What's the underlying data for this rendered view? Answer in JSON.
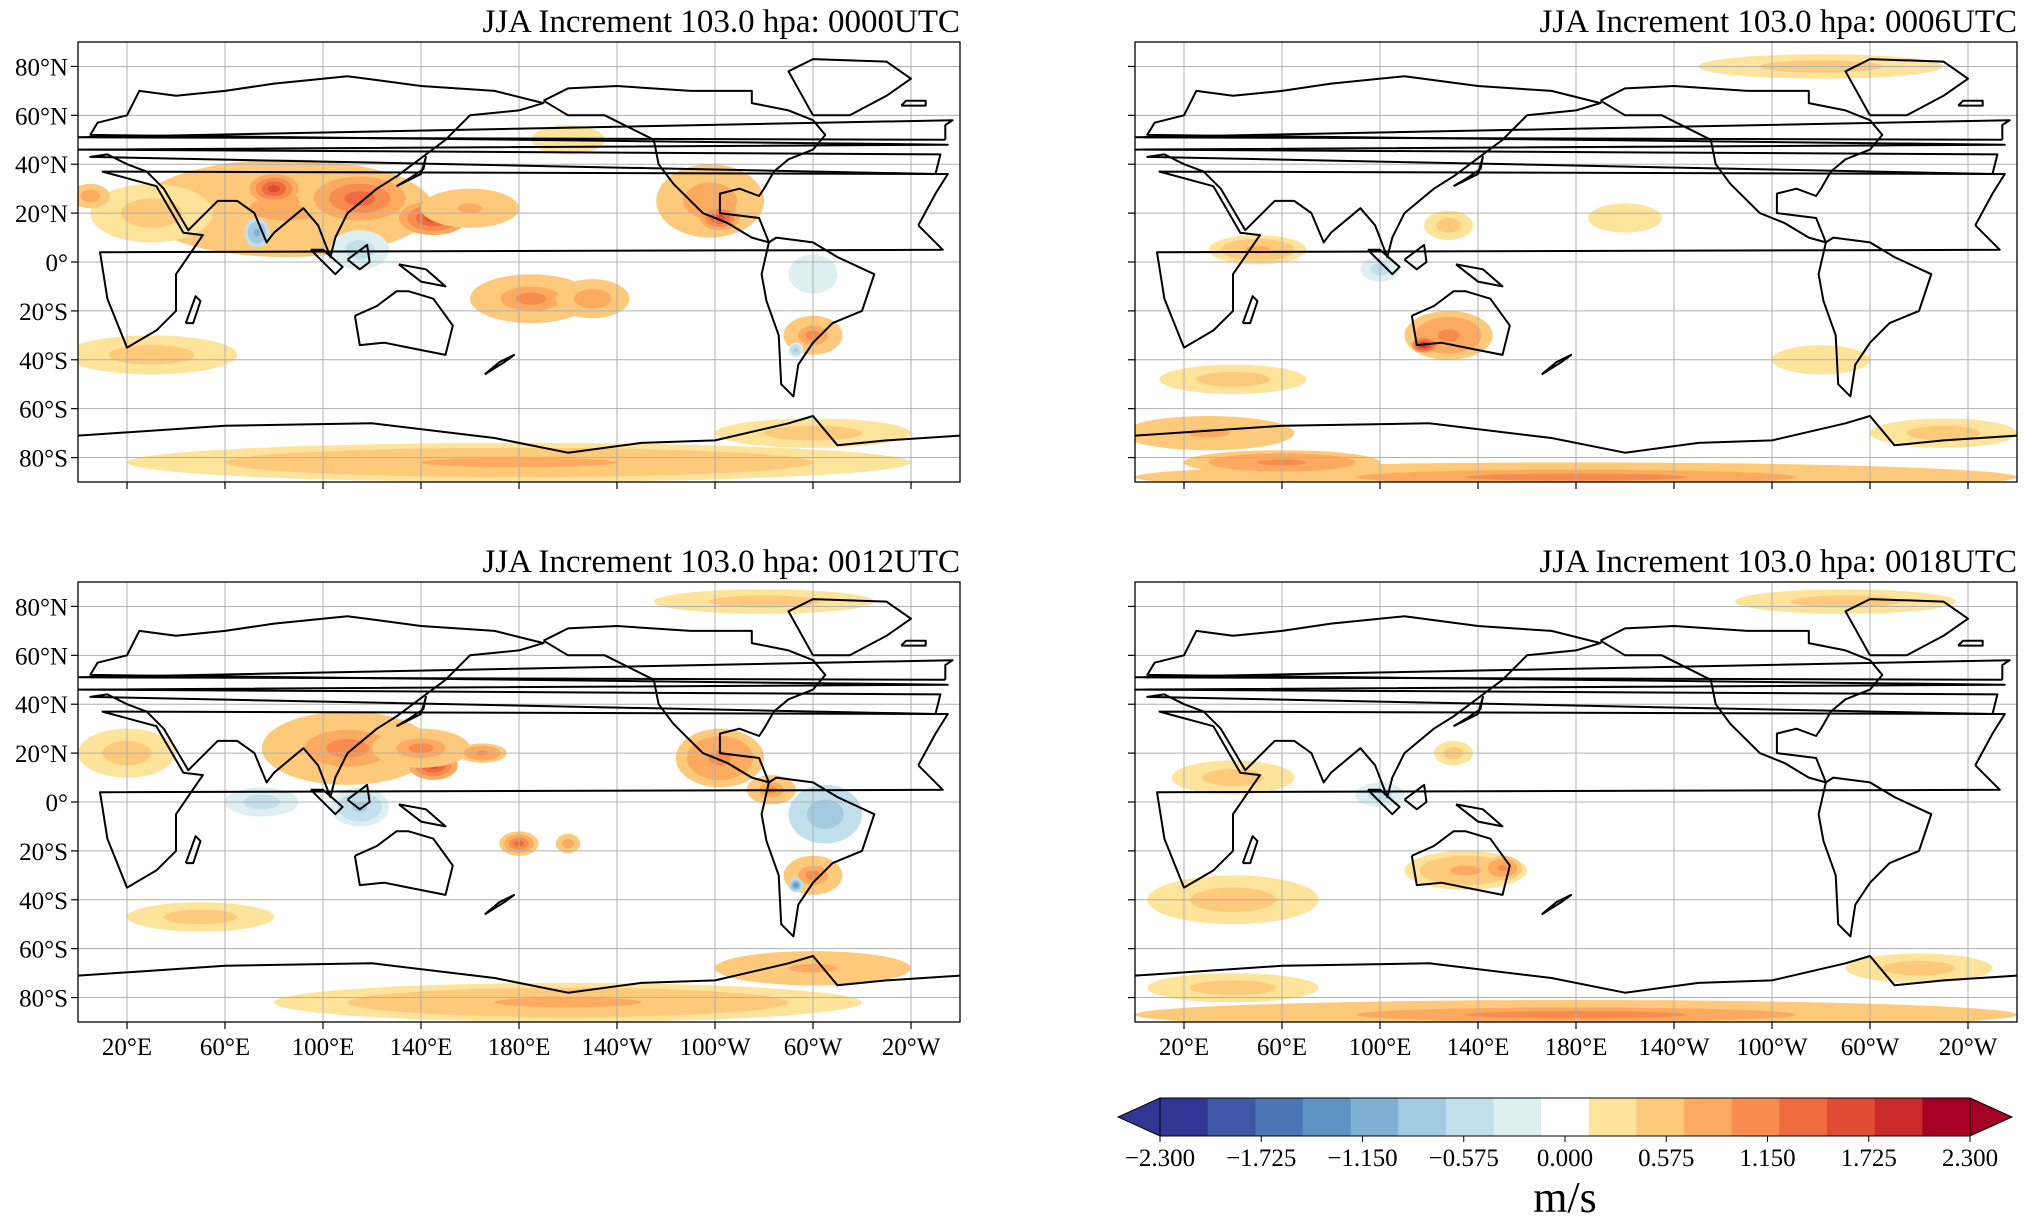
{
  "panels": [
    {
      "title": "JJA Increment 103.0 hpa: 0000UTC",
      "time": "0000UTC",
      "show_lat_labels": true,
      "show_lon_labels": false
    },
    {
      "title": "JJA Increment 103.0 hpa: 0006UTC",
      "time": "0006UTC",
      "show_lat_labels": false,
      "show_lon_labels": false
    },
    {
      "title": "JJA Increment 103.0 hpa: 0012UTC",
      "time": "0012UTC",
      "show_lat_labels": true,
      "show_lon_labels": true
    },
    {
      "title": "JJA Increment 103.0 hpa: 0018UTC",
      "time": "0018UTC",
      "show_lat_labels": false,
      "show_lon_labels": true
    }
  ],
  "lat_ticks": [
    {
      "value": 80,
      "label": "80°N"
    },
    {
      "value": 60,
      "label": "60°N"
    },
    {
      "value": 40,
      "label": "40°N"
    },
    {
      "value": 20,
      "label": "20°N"
    },
    {
      "value": 0,
      "label": "0°"
    },
    {
      "value": -20,
      "label": "20°S"
    },
    {
      "value": -40,
      "label": "40°S"
    },
    {
      "value": -60,
      "label": "60°S"
    },
    {
      "value": -80,
      "label": "80°S"
    }
  ],
  "lon_ticks": [
    {
      "value": 20,
      "label": "20°E"
    },
    {
      "value": 60,
      "label": "60°E"
    },
    {
      "value": 100,
      "label": "100°E"
    },
    {
      "value": 140,
      "label": "140°E"
    },
    {
      "value": 180,
      "label": "180°E"
    },
    {
      "value": 220,
      "label": "140°W"
    },
    {
      "value": 260,
      "label": "100°W"
    },
    {
      "value": 300,
      "label": "60°W"
    },
    {
      "value": 340,
      "label": "20°W"
    }
  ],
  "extent": {
    "lon_min": 0,
    "lon_max": 360,
    "lat_min": -90,
    "lat_max": 90
  },
  "colorbar": {
    "units": "m/s",
    "vmin": -2.3,
    "vmax": 2.3,
    "tick_labels": [
      "−2.300",
      "−1.725",
      "−1.150",
      "−0.575",
      "0.000",
      "0.575",
      "1.150",
      "1.725",
      "2.300"
    ],
    "colors": [
      "#313695",
      "#3d58a6",
      "#4a76b5",
      "#5e93c4",
      "#7eb1d4",
      "#a2cbe2",
      "#c2dfec",
      "#deeff2",
      "#ffffff",
      "#fee39a",
      "#fdc97a",
      "#fcaa60",
      "#f88c4f",
      "#ef6b3f",
      "#e04b33",
      "#c92a2c",
      "#a50026"
    ],
    "under_color": "#313695",
    "over_color": "#a50026"
  },
  "field_blobs": [
    [
      {
        "lon": 85,
        "lat": 22,
        "rx": 60,
        "ry": 20,
        "v": 0.8
      },
      {
        "lon": 115,
        "lat": 26,
        "rx": 25,
        "ry": 12,
        "v": 1.3
      },
      {
        "lon": 80,
        "lat": 30,
        "rx": 10,
        "ry": 6,
        "v": 1.6
      },
      {
        "lon": 145,
        "lat": 18,
        "rx": 14,
        "ry": 7,
        "v": 1.5
      },
      {
        "lon": 160,
        "lat": 22,
        "rx": 20,
        "ry": 8,
        "v": 0.8
      },
      {
        "lon": 30,
        "lat": 20,
        "rx": 25,
        "ry": 12,
        "v": 0.5
      },
      {
        "lon": 5,
        "lat": 27,
        "rx": 8,
        "ry": 5,
        "v": 0.9
      },
      {
        "lon": 73,
        "lat": 12,
        "rx": 5,
        "ry": 6,
        "v": -1.1
      },
      {
        "lon": 115,
        "lat": 5,
        "rx": 12,
        "ry": 8,
        "v": -0.5
      },
      {
        "lon": 185,
        "lat": -15,
        "rx": 25,
        "ry": 10,
        "v": 1.0
      },
      {
        "lon": 210,
        "lat": -15,
        "rx": 15,
        "ry": 8,
        "v": 0.9
      },
      {
        "lon": 258,
        "lat": 25,
        "rx": 22,
        "ry": 15,
        "v": 0.9
      },
      {
        "lon": 262,
        "lat": 18,
        "rx": 8,
        "ry": 5,
        "v": 1.6
      },
      {
        "lon": 300,
        "lat": -30,
        "rx": 12,
        "ry": 8,
        "v": 1.0
      },
      {
        "lon": 293,
        "lat": -36,
        "rx": 3,
        "ry": 3,
        "v": -0.7
      },
      {
        "lon": 300,
        "lat": -5,
        "rx": 10,
        "ry": 8,
        "v": -0.4
      },
      {
        "lon": 30,
        "lat": -38,
        "rx": 35,
        "ry": 8,
        "v": 0.5
      },
      {
        "lon": 180,
        "lat": -82,
        "rx": 160,
        "ry": 8,
        "v": 0.7
      },
      {
        "lon": 300,
        "lat": -70,
        "rx": 40,
        "ry": 6,
        "v": 0.6
      },
      {
        "lon": 200,
        "lat": 50,
        "rx": 15,
        "ry": 6,
        "v": 0.4
      }
    ],
    [
      {
        "lon": 128,
        "lat": -30,
        "rx": 18,
        "ry": 10,
        "v": 1.1
      },
      {
        "lon": 118,
        "lat": -34,
        "rx": 5,
        "ry": 3,
        "v": 2.0
      },
      {
        "lon": 50,
        "lat": 5,
        "rx": 20,
        "ry": 6,
        "v": 0.7
      },
      {
        "lon": 100,
        "lat": -3,
        "rx": 8,
        "ry": 5,
        "v": -0.6
      },
      {
        "lon": 128,
        "lat": 15,
        "rx": 10,
        "ry": 6,
        "v": 0.6
      },
      {
        "lon": 180,
        "lat": -88,
        "rx": 180,
        "ry": 6,
        "v": 1.0
      },
      {
        "lon": 30,
        "lat": -70,
        "rx": 35,
        "ry": 7,
        "v": 0.8
      },
      {
        "lon": 60,
        "lat": -82,
        "rx": 40,
        "ry": 5,
        "v": 1.1
      },
      {
        "lon": 330,
        "lat": -70,
        "rx": 30,
        "ry": 6,
        "v": 0.6
      },
      {
        "lon": 280,
        "lat": -40,
        "rx": 20,
        "ry": 6,
        "v": 0.4
      },
      {
        "lon": 40,
        "lat": -48,
        "rx": 30,
        "ry": 6,
        "v": 0.5
      },
      {
        "lon": 280,
        "lat": 80,
        "rx": 50,
        "ry": 5,
        "v": 0.5
      },
      {
        "lon": 200,
        "lat": 18,
        "rx": 15,
        "ry": 6,
        "v": 0.4
      }
    ],
    [
      {
        "lon": 110,
        "lat": 22,
        "rx": 35,
        "ry": 15,
        "v": 1.0
      },
      {
        "lon": 145,
        "lat": 15,
        "rx": 10,
        "ry": 6,
        "v": 1.7
      },
      {
        "lon": 140,
        "lat": 22,
        "rx": 20,
        "ry": 8,
        "v": 1.0
      },
      {
        "lon": 165,
        "lat": 20,
        "rx": 10,
        "ry": 4,
        "v": 1.1
      },
      {
        "lon": 20,
        "lat": 20,
        "rx": 20,
        "ry": 10,
        "v": 0.6
      },
      {
        "lon": 75,
        "lat": 0,
        "rx": 15,
        "ry": 6,
        "v": -0.6
      },
      {
        "lon": 115,
        "lat": -2,
        "rx": 12,
        "ry": 8,
        "v": -0.7
      },
      {
        "lon": 262,
        "lat": 18,
        "rx": 18,
        "ry": 12,
        "v": 1.1
      },
      {
        "lon": 283,
        "lat": 5,
        "rx": 10,
        "ry": 6,
        "v": 1.0
      },
      {
        "lon": 305,
        "lat": -5,
        "rx": 15,
        "ry": 12,
        "v": -0.9
      },
      {
        "lon": 300,
        "lat": -30,
        "rx": 12,
        "ry": 8,
        "v": 1.0
      },
      {
        "lon": 293,
        "lat": -34,
        "rx": 3,
        "ry": 3,
        "v": -1.3
      },
      {
        "lon": 180,
        "lat": -17,
        "rx": 8,
        "ry": 5,
        "v": 1.3
      },
      {
        "lon": 200,
        "lat": -17,
        "rx": 5,
        "ry": 4,
        "v": 0.9
      },
      {
        "lon": 50,
        "lat": -47,
        "rx": 30,
        "ry": 6,
        "v": 0.6
      },
      {
        "lon": 200,
        "lat": -82,
        "rx": 120,
        "ry": 8,
        "v": 0.7
      },
      {
        "lon": 300,
        "lat": -68,
        "rx": 40,
        "ry": 7,
        "v": 0.8
      },
      {
        "lon": 280,
        "lat": 82,
        "rx": 45,
        "ry": 5,
        "v": 0.6
      }
    ],
    [
      {
        "lon": 40,
        "lat": 10,
        "rx": 25,
        "ry": 7,
        "v": 0.6
      },
      {
        "lon": 100,
        "lat": 3,
        "rx": 10,
        "ry": 5,
        "v": -0.6
      },
      {
        "lon": 130,
        "lat": 20,
        "rx": 8,
        "ry": 5,
        "v": 0.5
      },
      {
        "lon": 135,
        "lat": -28,
        "rx": 25,
        "ry": 8,
        "v": 0.7
      },
      {
        "lon": 150,
        "lat": -27,
        "rx": 8,
        "ry": 5,
        "v": 1.1
      },
      {
        "lon": 40,
        "lat": -40,
        "rx": 35,
        "ry": 10,
        "v": 0.5
      },
      {
        "lon": 180,
        "lat": -87,
        "rx": 180,
        "ry": 6,
        "v": 1.0
      },
      {
        "lon": 40,
        "lat": -76,
        "rx": 35,
        "ry": 6,
        "v": 0.6
      },
      {
        "lon": 320,
        "lat": -68,
        "rx": 30,
        "ry": 6,
        "v": 0.6
      },
      {
        "lon": 290,
        "lat": 82,
        "rx": 45,
        "ry": 5,
        "v": 0.5
      }
    ]
  ],
  "coastlines": [
    [
      [
        -17,
        15
      ],
      [
        -10,
        28
      ],
      [
        -5,
        36
      ],
      [
        10,
        37
      ],
      [
        32,
        31
      ],
      [
        43,
        12
      ],
      [
        51,
        11
      ],
      [
        40,
        -5
      ],
      [
        40,
        -20
      ],
      [
        32,
        -28
      ],
      [
        20,
        -35
      ],
      [
        12,
        -15
      ],
      [
        9,
        4
      ],
      [
        -7,
        5
      ],
      [
        -17,
        15
      ]
    ],
    [
      [
        -10,
        36
      ],
      [
        -8,
        44
      ],
      [
        0,
        46
      ],
      [
        -5,
        48
      ],
      [
        5,
        52
      ],
      [
        8,
        57
      ],
      [
        20,
        60
      ],
      [
        25,
        70
      ],
      [
        40,
        68
      ],
      [
        60,
        70
      ],
      [
        80,
        73
      ],
      [
        110,
        76
      ],
      [
        140,
        72
      ],
      [
        170,
        70
      ],
      [
        190,
        65
      ],
      [
        180,
        62
      ],
      [
        160,
        60
      ],
      [
        150,
        50
      ],
      [
        130,
        35
      ],
      [
        122,
        30
      ],
      [
        110,
        20
      ],
      [
        105,
        10
      ],
      [
        103,
        2
      ],
      [
        98,
        15
      ],
      [
        92,
        22
      ],
      [
        80,
        12
      ],
      [
        77,
        8
      ],
      [
        72,
        20
      ],
      [
        65,
        25
      ],
      [
        57,
        25
      ],
      [
        45,
        13
      ],
      [
        35,
        30
      ],
      [
        28,
        37
      ],
      [
        20,
        40
      ],
      [
        12,
        44
      ],
      [
        5,
        43
      ],
      [
        -10,
        36
      ]
    ],
    [
      [
        113,
        -22
      ],
      [
        115,
        -34
      ],
      [
        125,
        -33
      ],
      [
        135,
        -35
      ],
      [
        150,
        -38
      ],
      [
        153,
        -26
      ],
      [
        145,
        -15
      ],
      [
        135,
        -12
      ],
      [
        130,
        -12
      ],
      [
        122,
        -18
      ],
      [
        113,
        -22
      ]
    ],
    [
      [
        190,
        66
      ],
      [
        200,
        60
      ],
      [
        215,
        60
      ],
      [
        235,
        50
      ],
      [
        237,
        40
      ],
      [
        243,
        32
      ],
      [
        255,
        20
      ],
      [
        265,
        16
      ],
      [
        275,
        10
      ],
      [
        282,
        8
      ],
      [
        278,
        18
      ],
      [
        262,
        20
      ],
      [
        262,
        28
      ],
      [
        270,
        30
      ],
      [
        278,
        27
      ],
      [
        280,
        30
      ],
      [
        284,
        37
      ],
      [
        290,
        42
      ],
      [
        300,
        46
      ],
      [
        305,
        52
      ],
      [
        300,
        58
      ],
      [
        290,
        62
      ],
      [
        275,
        65
      ],
      [
        275,
        70
      ],
      [
        250,
        70
      ],
      [
        220,
        72
      ],
      [
        200,
        71
      ],
      [
        190,
        66
      ]
    ],
    [
      [
        282,
        8
      ],
      [
        285,
        10
      ],
      [
        300,
        8
      ],
      [
        310,
        2
      ],
      [
        325,
        -5
      ],
      [
        320,
        -20
      ],
      [
        308,
        -25
      ],
      [
        300,
        -33
      ],
      [
        294,
        -42
      ],
      [
        292,
        -55
      ],
      [
        287,
        -50
      ],
      [
        286,
        -30
      ],
      [
        281,
        -16
      ],
      [
        279,
        -5
      ],
      [
        282,
        8
      ]
    ],
    [
      [
        300,
        60
      ],
      [
        315,
        60
      ],
      [
        330,
        68
      ],
      [
        340,
        75
      ],
      [
        330,
        82
      ],
      [
        300,
        83
      ],
      [
        290,
        78
      ],
      [
        300,
        60
      ]
    ],
    [
      [
        0,
        -71
      ],
      [
        60,
        -67
      ],
      [
        120,
        -66
      ],
      [
        170,
        -72
      ],
      [
        200,
        -78
      ],
      [
        230,
        -74
      ],
      [
        260,
        -73
      ],
      [
        290,
        -66
      ],
      [
        300,
        -63
      ],
      [
        310,
        -75
      ],
      [
        330,
        -73
      ],
      [
        360,
        -71
      ]
    ],
    [
      [
        95,
        5
      ],
      [
        105,
        -5
      ],
      [
        108,
        -2
      ],
      [
        100,
        5
      ],
      [
        95,
        5
      ]
    ],
    [
      [
        110,
        1
      ],
      [
        118,
        7
      ],
      [
        119,
        0
      ],
      [
        115,
        -3
      ],
      [
        110,
        1
      ]
    ],
    [
      [
        131,
        -1
      ],
      [
        142,
        -3
      ],
      [
        150,
        -10
      ],
      [
        140,
        -8
      ],
      [
        131,
        -1
      ]
    ],
    [
      [
        130,
        31
      ],
      [
        135,
        34
      ],
      [
        141,
        38
      ],
      [
        142,
        43
      ],
      [
        140,
        36
      ],
      [
        130,
        31
      ]
    ],
    [
      [
        166,
        -46
      ],
      [
        172,
        -41
      ],
      [
        178,
        -38
      ],
      [
        174,
        -41
      ],
      [
        166,
        -46
      ]
    ],
    [
      [
        -6,
        50
      ],
      [
        0,
        51
      ],
      [
        -3,
        58
      ],
      [
        -6,
        56
      ],
      [
        -6,
        50
      ]
    ],
    [
      [
        -24,
        64
      ],
      [
        -14,
        64
      ],
      [
        -14,
        66
      ],
      [
        -22,
        66
      ],
      [
        -24,
        64
      ]
    ],
    [
      [
        44,
        -25
      ],
      [
        48,
        -14
      ],
      [
        50,
        -16
      ],
      [
        47,
        -25
      ],
      [
        44,
        -25
      ]
    ]
  ]
}
